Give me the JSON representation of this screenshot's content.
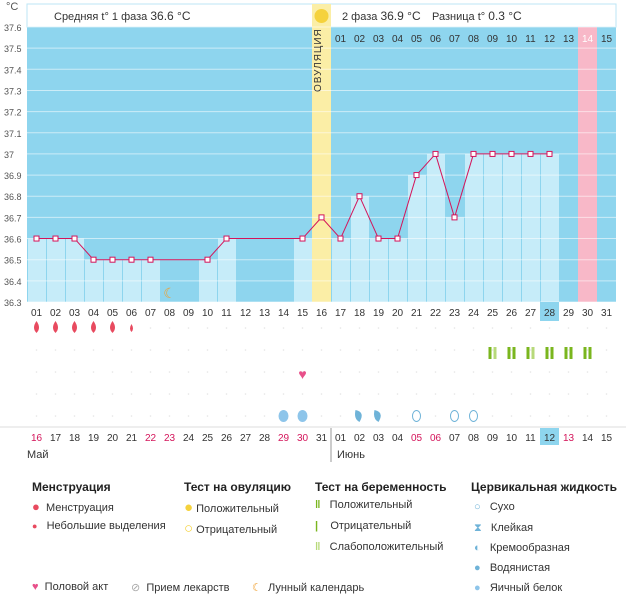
{
  "header": {
    "unit": "°C",
    "phase1_label": "Средняя t° 1 фаза",
    "phase1_value": "36.6 °C",
    "phase2_label": "2 фаза",
    "phase2_value": "36.9 °C",
    "diff_label": "Разница t°",
    "diff_value": "0.3 °C",
    "ovulation_label": "ОВУЛЯЦИЯ"
  },
  "colors": {
    "background": "#8ed5ee",
    "bar": "#c6ecf9",
    "ovulation": "#fbeea6",
    "highlight": "#f8b8c8",
    "line": "#d4145a",
    "today": "#8ed5ee"
  },
  "chart_data": {
    "type": "line",
    "ylim": [
      36.3,
      37.6
    ],
    "yticks": [
      "37.6",
      "37.5",
      "37.4",
      "37.3",
      "37.2",
      "37.1",
      "37",
      "36.9",
      "36.8",
      "36.7",
      "36.6",
      "36.5",
      "36.4",
      "36.3"
    ],
    "x": [
      "01",
      "02",
      "03",
      "04",
      "05",
      "06",
      "07",
      "08",
      "09",
      "10",
      "11",
      "12",
      "13",
      "14",
      "15",
      "16",
      "17",
      "18",
      "19",
      "20",
      "21",
      "22",
      "23",
      "24",
      "25",
      "26",
      "27",
      "28",
      "29",
      "30",
      "31"
    ],
    "top_days": [
      "01",
      "02",
      "03",
      "04",
      "05",
      "06",
      "07",
      "08",
      "09",
      "10",
      "11",
      "12",
      "13",
      "14",
      "15"
    ],
    "top_highlight_day": "14",
    "series": [
      {
        "values": [
          36.6,
          36.6,
          36.6,
          36.5,
          36.5,
          36.5,
          36.5,
          null,
          null,
          36.5,
          36.6,
          null,
          null,
          null,
          36.6,
          36.7,
          36.6,
          36.8,
          36.6,
          36.6,
          36.9,
          37.0,
          36.7,
          37.0,
          37.0,
          37.0,
          37.0,
          37.0,
          null,
          null,
          null
        ]
      }
    ],
    "interpolated_segments": [
      [
        7,
        10
      ],
      [
        12,
        15
      ]
    ],
    "moon_day": "08",
    "ovulation_day": "16",
    "selected_day": "28",
    "highlight_day": "30",
    "dates": [
      "16",
      "17",
      "18",
      "19",
      "20",
      "21",
      "22",
      "23",
      "24",
      "25",
      "26",
      "27",
      "28",
      "29",
      "30",
      "31",
      "01",
      "02",
      "03",
      "04",
      "05",
      "06",
      "07",
      "08",
      "09",
      "10",
      "11",
      "12",
      "13",
      "14",
      "15"
    ],
    "red_dates": [
      "16",
      "22",
      "23",
      "29",
      "30",
      "05",
      "06",
      "13"
    ],
    "months": [
      "Май",
      "Июнь"
    ],
    "menstruation": {
      "full": [
        1,
        2,
        3,
        4,
        5
      ],
      "small": [
        6
      ]
    },
    "pregnancy_tests": {
      "positive": [
        25,
        26,
        27,
        28,
        29,
        30
      ],
      "weak": [
        25,
        27
      ]
    },
    "sex_days": [
      15
    ],
    "fluid_eggwhite": [
      14,
      15
    ],
    "fluid_creamy": [
      18,
      19
    ],
    "fluid_dry": [
      21,
      23,
      24
    ]
  },
  "legend": {
    "menstruation": {
      "title": "Менструация",
      "items": [
        "Менструация",
        "Небольшие выделения"
      ]
    },
    "ovulation_test": {
      "title": "Тест на овуляцию",
      "items": [
        "Положительный",
        "Отрицательный"
      ]
    },
    "pregnancy_test": {
      "title": "Тест на беременность",
      "items": [
        "Положительный",
        "Отрицательный",
        "Слабоположительный"
      ]
    },
    "cervical": {
      "title": "Цервикальная жидкость",
      "items": [
        "Сухо",
        "Клейкая",
        "Кремообразная",
        "Водянистая",
        "Яичный белок"
      ]
    },
    "bottom": [
      "Половой акт",
      "Прием лекарств",
      "Лунный календарь"
    ]
  }
}
